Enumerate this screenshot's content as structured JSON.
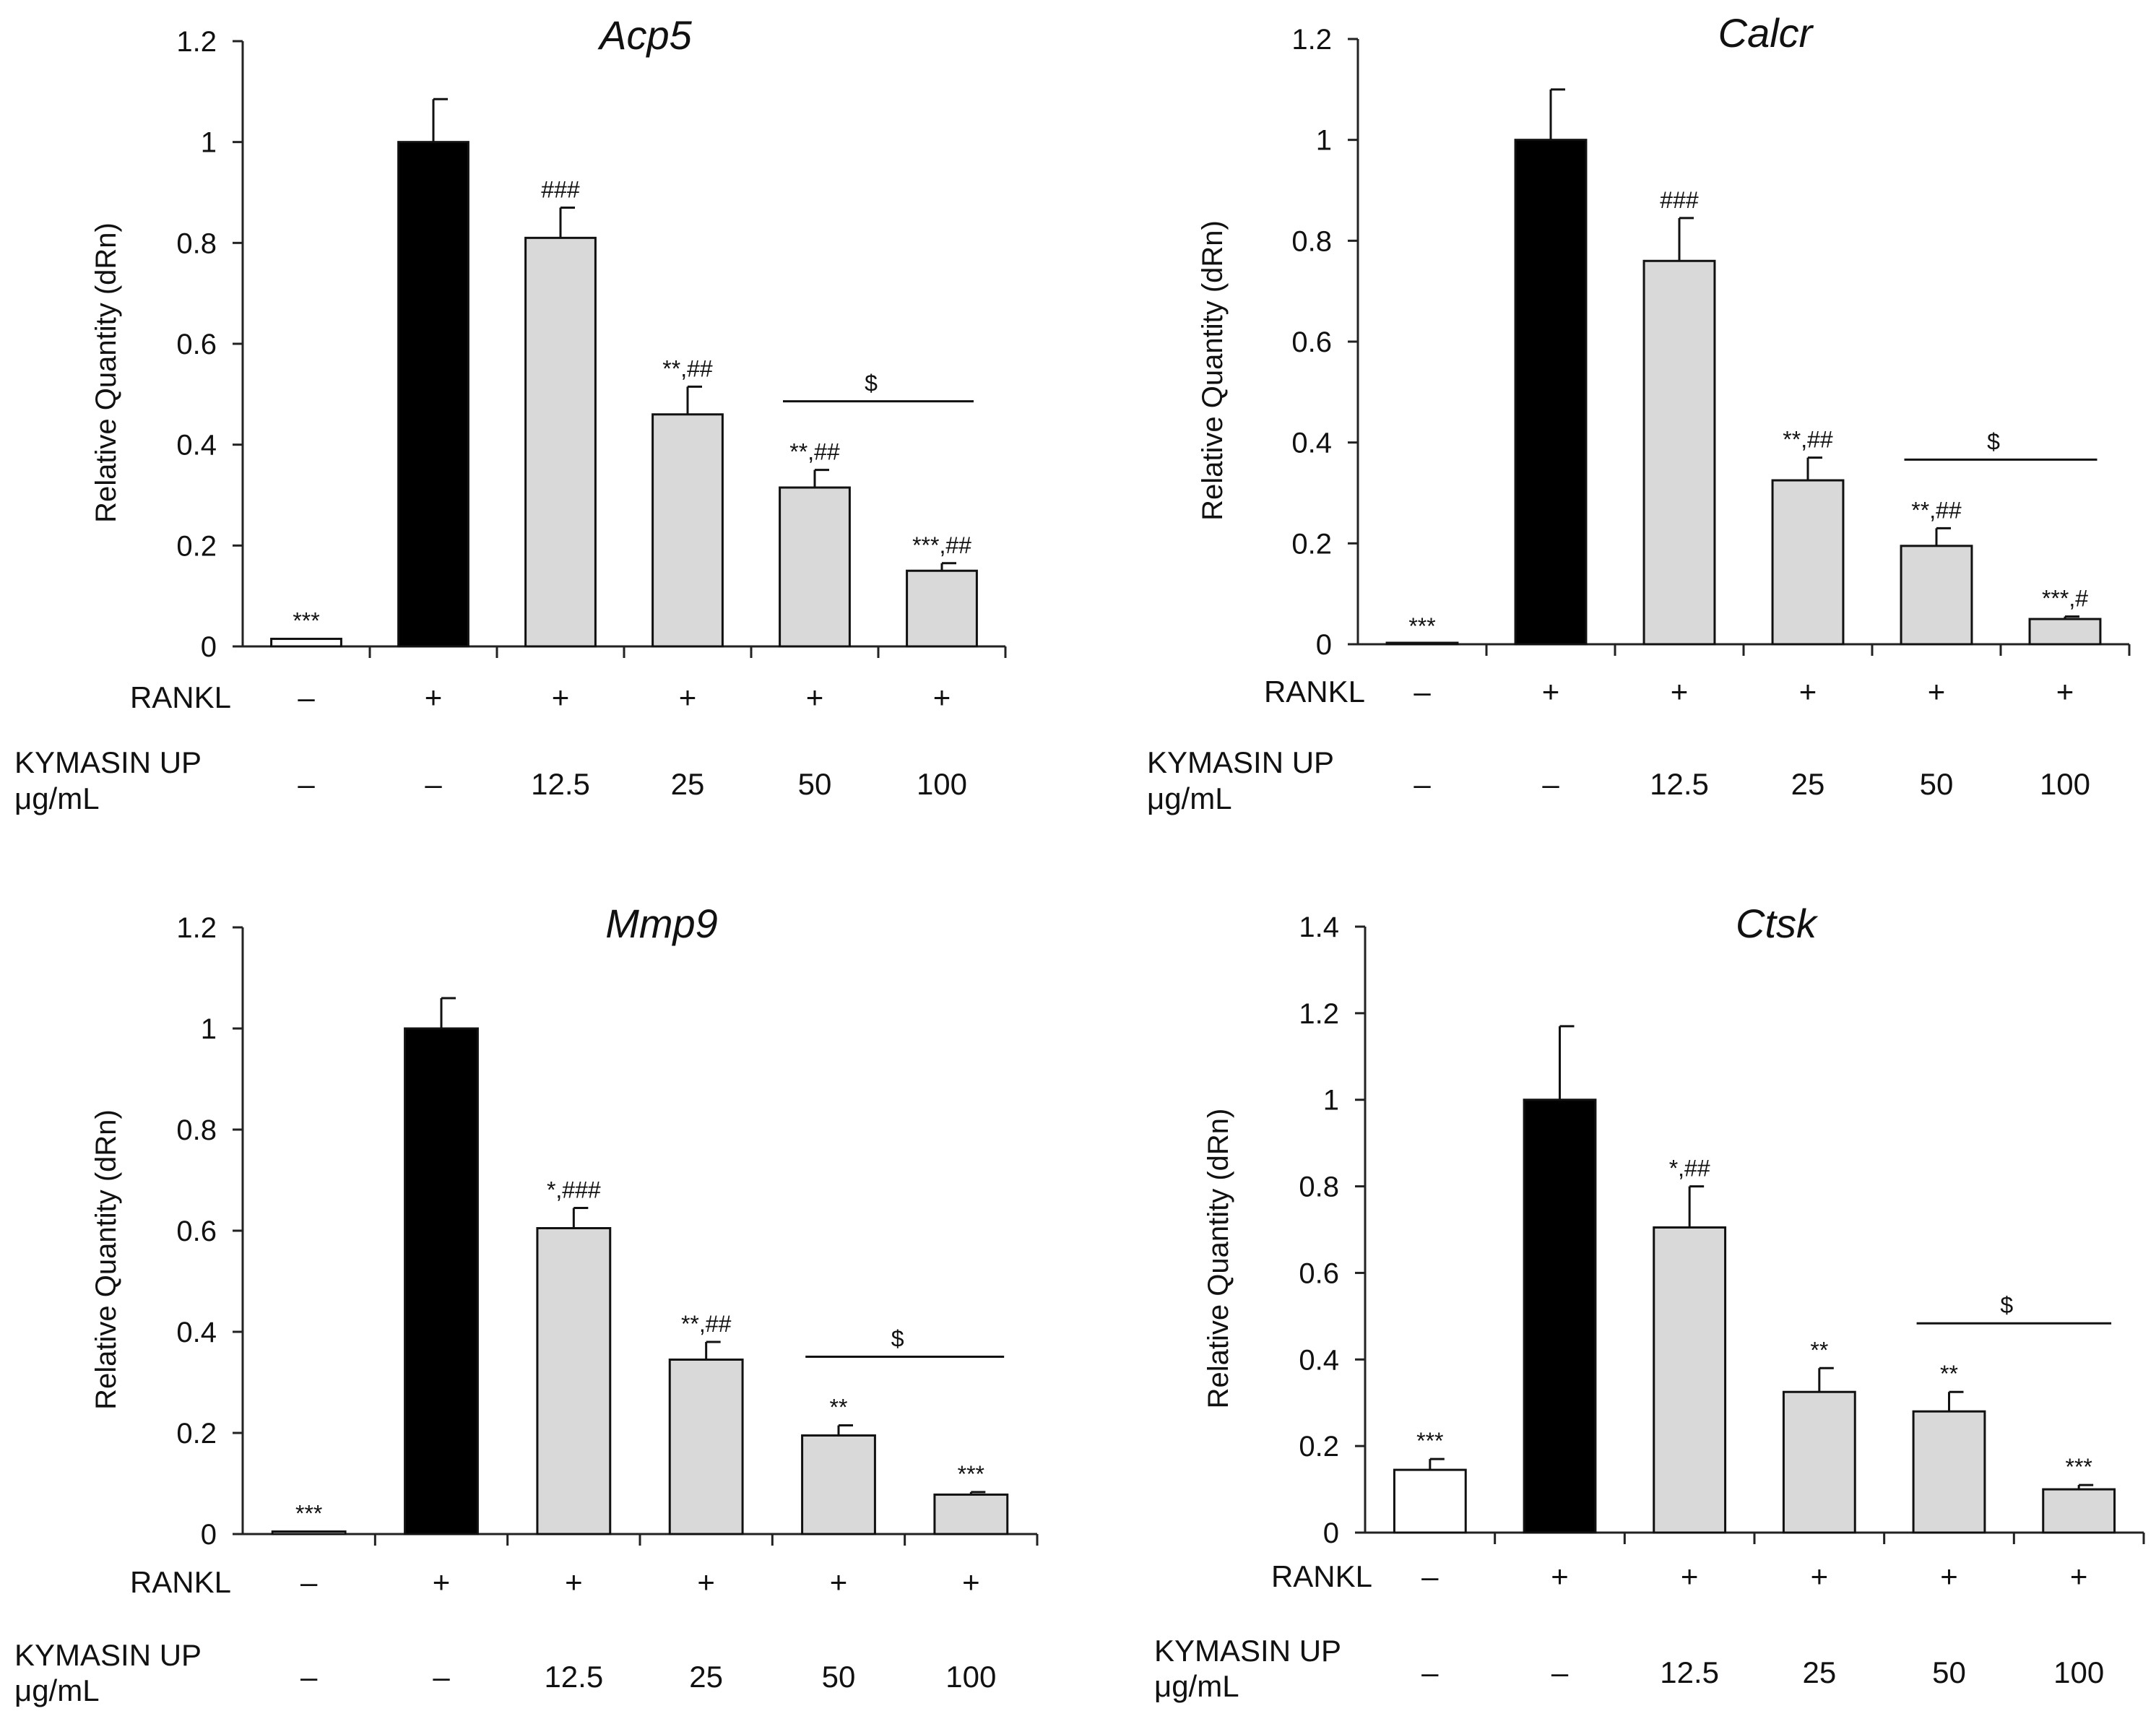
{
  "chart_data": [
    {
      "type": "bar",
      "title": "Acp5",
      "ylabel": "Relative Quantity (dRn)",
      "ylim": [
        0,
        1.2
      ],
      "yticks": [
        "0",
        "0.2",
        "0.4",
        "0.6",
        "0.8",
        "1",
        "1.2"
      ],
      "categories": [
        "-/-",
        "+/-",
        "+/12.5",
        "+/25",
        "+/50",
        "+/100"
      ],
      "values": [
        0.015,
        1.0,
        0.81,
        0.46,
        0.315,
        0.15
      ],
      "errors": [
        0.0,
        0.085,
        0.06,
        0.055,
        0.035,
        0.015
      ],
      "fills": [
        "#ffffff",
        "#000000",
        "#d9d9d9",
        "#d9d9d9",
        "#d9d9d9",
        "#d9d9d9"
      ],
      "annotations": [
        "***",
        "",
        "###",
        "**,##",
        "**,##",
        "***,##"
      ],
      "bracket": {
        "from": 4,
        "to": 5,
        "label": "$"
      },
      "rankl_label": "RANKL",
      "rankl": [
        "–",
        "+",
        "+",
        "+",
        "+",
        "+"
      ],
      "dose_label_1": "KYMASIN UP",
      "dose_label_2": "μg/mL",
      "dose": [
        "–",
        "–",
        "12.5",
        "25",
        "50",
        "100"
      ]
    },
    {
      "type": "bar",
      "title": "Calcr",
      "ylabel": "Relative Quantity (dRn)",
      "ylim": [
        0,
        1.2
      ],
      "yticks": [
        "0",
        "0.2",
        "0.4",
        "0.6",
        "0.8",
        "1",
        "1.2"
      ],
      "categories": [
        "-/-",
        "+/-",
        "+/12.5",
        "+/25",
        "+/50",
        "+/100"
      ],
      "values": [
        0.0,
        1.0,
        0.76,
        0.325,
        0.195,
        0.05
      ],
      "errors": [
        0.0,
        0.1,
        0.085,
        0.045,
        0.035,
        0.005
      ],
      "fills": [
        "#ffffff",
        "#000000",
        "#d9d9d9",
        "#d9d9d9",
        "#d9d9d9",
        "#d9d9d9"
      ],
      "annotations": [
        "***",
        "",
        "###",
        "**,##",
        "**,##",
        "***,#"
      ],
      "bracket": {
        "from": 4,
        "to": 5,
        "label": "$"
      },
      "rankl_label": "RANKL",
      "rankl": [
        "–",
        "+",
        "+",
        "+",
        "+",
        "+"
      ],
      "dose_label_1": "KYMASIN UP",
      "dose_label_2": "μg/mL",
      "dose": [
        "–",
        "–",
        "12.5",
        "25",
        "50",
        "100"
      ]
    },
    {
      "type": "bar",
      "title": "Mmp9",
      "ylabel": "Relative Quantity (dRn)",
      "ylim": [
        0,
        1.2
      ],
      "yticks": [
        "0",
        "0.2",
        "0.4",
        "0.6",
        "0.8",
        "1",
        "1.2"
      ],
      "categories": [
        "-/-",
        "+/-",
        "+/12.5",
        "+/25",
        "+/50",
        "+/100"
      ],
      "values": [
        0.005,
        1.0,
        0.605,
        0.345,
        0.195,
        0.078
      ],
      "errors": [
        0.0,
        0.06,
        0.04,
        0.035,
        0.02,
        0.005
      ],
      "fills": [
        "#ffffff",
        "#000000",
        "#d9d9d9",
        "#d9d9d9",
        "#d9d9d9",
        "#d9d9d9"
      ],
      "annotations": [
        "***",
        "",
        "*,###",
        "**,##",
        "**",
        "***"
      ],
      "bracket": {
        "from": 4,
        "to": 5,
        "label": "$"
      },
      "rankl_label": "RANKL",
      "rankl": [
        "–",
        "+",
        "+",
        "+",
        "+",
        "+"
      ],
      "dose_label_1": "KYMASIN UP",
      "dose_label_2": "μg/mL",
      "dose": [
        "–",
        "–",
        "12.5",
        "25",
        "50",
        "100"
      ]
    },
    {
      "type": "bar",
      "title": "Ctsk",
      "ylabel": "Relative Quantity (dRn)",
      "ylim": [
        0,
        1.4
      ],
      "yticks": [
        "0",
        "0.2",
        "0.4",
        "0.6",
        "0.8",
        "1",
        "1.2",
        "1.4"
      ],
      "categories": [
        "-/-",
        "+/-",
        "+/12.5",
        "+/25",
        "+/50",
        "+/100"
      ],
      "values": [
        0.145,
        1.0,
        0.705,
        0.325,
        0.28,
        0.1
      ],
      "errors": [
        0.025,
        0.17,
        0.095,
        0.055,
        0.045,
        0.01
      ],
      "fills": [
        "#ffffff",
        "#000000",
        "#d9d9d9",
        "#d9d9d9",
        "#d9d9d9",
        "#d9d9d9"
      ],
      "annotations": [
        "***",
        "",
        "*,##",
        "**",
        "**",
        "***"
      ],
      "bracket": {
        "from": 4,
        "to": 5,
        "label": "$"
      },
      "rankl_label": "RANKL",
      "rankl": [
        "–",
        "+",
        "+",
        "+",
        "+",
        "+"
      ],
      "dose_label_1": "KYMASIN UP",
      "dose_label_2": "μg/mL",
      "dose": [
        "–",
        "–",
        "12.5",
        "25",
        "50",
        "100"
      ]
    }
  ]
}
